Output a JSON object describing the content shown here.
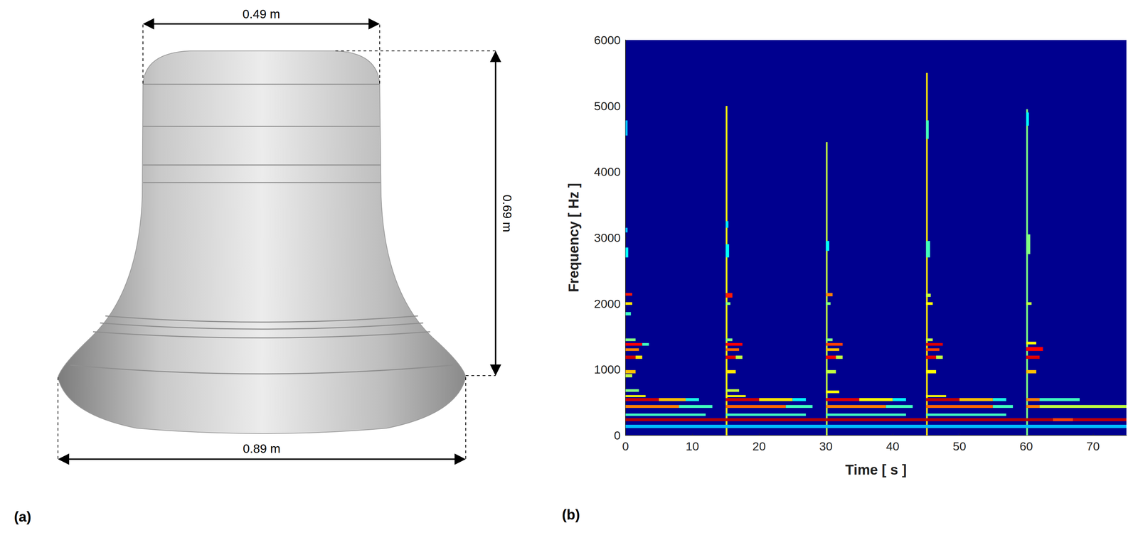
{
  "figure": {
    "a": {
      "label": "(a)",
      "top_width": "0.49 m",
      "height": "0.69 m",
      "base_width": "0.89 m"
    },
    "b": {
      "label": "(b)"
    }
  },
  "chart_data": {
    "type": "heatmap",
    "x_label": "Time [ s ]",
    "y_label": "Frequency [ Hz ]",
    "xlim": [
      0,
      75
    ],
    "xticks": [
      0,
      10,
      20,
      30,
      40,
      50,
      60,
      70
    ],
    "ylim": [
      0,
      6000
    ],
    "yticks": [
      0,
      1000,
      2000,
      3000,
      4000,
      5000,
      6000
    ],
    "grid": false,
    "color_range": [
      0,
      1
    ],
    "cells": [
      [
        0,
        15,
        110,
        160,
        0.35
      ],
      [
        0,
        15,
        215,
        260,
        0.92
      ],
      [
        0,
        12,
        295,
        330,
        0.45
      ],
      [
        0,
        8,
        415,
        460,
        0.7
      ],
      [
        8,
        13,
        415,
        460,
        0.45
      ],
      [
        0,
        5,
        520,
        565,
        0.88
      ],
      [
        5,
        9,
        520,
        565,
        0.65
      ],
      [
        9,
        11,
        520,
        565,
        0.42
      ],
      [
        0,
        3,
        580,
        610,
        0.6
      ],
      [
        0,
        2,
        660,
        700,
        0.5
      ],
      [
        0,
        1,
        880,
        930,
        0.55
      ],
      [
        0,
        1.5,
        940,
        990,
        0.65
      ],
      [
        0,
        1.5,
        1160,
        1210,
        0.88
      ],
      [
        1.5,
        2.5,
        1160,
        1210,
        0.62
      ],
      [
        0,
        2,
        1280,
        1320,
        0.7
      ],
      [
        0,
        2.5,
        1360,
        1400,
        0.8
      ],
      [
        2.5,
        3.5,
        1360,
        1400,
        0.45
      ],
      [
        0,
        1.5,
        1430,
        1470,
        0.5
      ],
      [
        0,
        0.8,
        1820,
        1870,
        0.45
      ],
      [
        0,
        1,
        1980,
        2020,
        0.62
      ],
      [
        0,
        1,
        2120,
        2160,
        0.78
      ],
      [
        0,
        0.4,
        2700,
        2850,
        0.4
      ],
      [
        0,
        0.3,
        3080,
        3150,
        0.35
      ],
      [
        0,
        0.3,
        4550,
        4780,
        0.35
      ],
      [
        15,
        15.25,
        0,
        5000,
        0.6
      ],
      [
        15,
        30,
        110,
        160,
        0.35
      ],
      [
        15,
        30,
        215,
        260,
        0.92
      ],
      [
        15,
        27,
        295,
        330,
        0.45
      ],
      [
        15,
        24,
        415,
        460,
        0.72
      ],
      [
        24,
        28,
        415,
        460,
        0.45
      ],
      [
        15,
        20,
        520,
        565,
        0.88
      ],
      [
        20,
        25,
        520,
        565,
        0.62
      ],
      [
        25,
        27,
        520,
        565,
        0.4
      ],
      [
        15,
        18,
        580,
        610,
        0.6
      ],
      [
        15,
        17,
        660,
        700,
        0.55
      ],
      [
        15,
        16.5,
        940,
        990,
        0.62
      ],
      [
        15,
        16.5,
        1160,
        1210,
        0.85
      ],
      [
        16.5,
        17.5,
        1160,
        1210,
        0.55
      ],
      [
        15,
        17,
        1280,
        1320,
        0.72
      ],
      [
        15,
        17.5,
        1360,
        1400,
        0.8
      ],
      [
        15,
        16,
        1430,
        1470,
        0.5
      ],
      [
        15,
        16,
        2090,
        2160,
        0.78
      ],
      [
        15,
        15.7,
        1980,
        2020,
        0.5
      ],
      [
        15,
        15.5,
        2700,
        2900,
        0.4
      ],
      [
        15,
        15.4,
        3150,
        3250,
        0.38
      ],
      [
        30,
        30.25,
        0,
        4450,
        0.55
      ],
      [
        30,
        45,
        110,
        160,
        0.35
      ],
      [
        30,
        45,
        215,
        260,
        0.92
      ],
      [
        30,
        42,
        295,
        330,
        0.45
      ],
      [
        30,
        39,
        415,
        460,
        0.7
      ],
      [
        39,
        43,
        415,
        460,
        0.45
      ],
      [
        30,
        35,
        520,
        565,
        0.85
      ],
      [
        35,
        40,
        520,
        565,
        0.6
      ],
      [
        40,
        42,
        520,
        565,
        0.4
      ],
      [
        30,
        32,
        640,
        680,
        0.6
      ],
      [
        30,
        31.5,
        940,
        990,
        0.55
      ],
      [
        30,
        31.5,
        1160,
        1210,
        0.82
      ],
      [
        31.5,
        32.5,
        1160,
        1210,
        0.55
      ],
      [
        30,
        32,
        1280,
        1320,
        0.65
      ],
      [
        30,
        32.5,
        1360,
        1400,
        0.75
      ],
      [
        30,
        31,
        1430,
        1470,
        0.5
      ],
      [
        30,
        31,
        2110,
        2160,
        0.7
      ],
      [
        30,
        30.7,
        1980,
        2020,
        0.5
      ],
      [
        30,
        30.5,
        2800,
        2950,
        0.4
      ],
      [
        45,
        45.25,
        0,
        5500,
        0.62
      ],
      [
        45,
        60,
        110,
        160,
        0.35
      ],
      [
        45,
        60,
        215,
        260,
        0.92
      ],
      [
        45,
        57,
        295,
        330,
        0.45
      ],
      [
        45,
        55,
        415,
        460,
        0.72
      ],
      [
        55,
        58,
        415,
        460,
        0.45
      ],
      [
        45,
        50,
        520,
        565,
        0.9
      ],
      [
        50,
        55,
        520,
        565,
        0.65
      ],
      [
        55,
        57,
        520,
        565,
        0.42
      ],
      [
        45,
        48,
        580,
        610,
        0.6
      ],
      [
        45,
        46.5,
        940,
        990,
        0.6
      ],
      [
        45,
        46.5,
        1160,
        1210,
        0.85
      ],
      [
        46.5,
        47.5,
        1160,
        1210,
        0.55
      ],
      [
        45,
        47,
        1280,
        1320,
        0.75
      ],
      [
        45,
        47.5,
        1360,
        1400,
        0.85
      ],
      [
        45,
        46,
        1430,
        1470,
        0.55
      ],
      [
        45,
        46,
        1980,
        2020,
        0.6
      ],
      [
        45,
        45.7,
        2100,
        2150,
        0.55
      ],
      [
        45,
        45.6,
        2700,
        2950,
        0.45
      ],
      [
        45,
        45.4,
        4500,
        4780,
        0.45
      ],
      [
        60,
        60.25,
        0,
        4950,
        0.5
      ],
      [
        60,
        75,
        110,
        160,
        0.35
      ],
      [
        60,
        64,
        215,
        260,
        0.92
      ],
      [
        64,
        67,
        215,
        260,
        0.75
      ],
      [
        67,
        75,
        215,
        260,
        0.9
      ],
      [
        60,
        62,
        415,
        460,
        0.7
      ],
      [
        62,
        75,
        415,
        460,
        0.55
      ],
      [
        60,
        62,
        520,
        565,
        0.7
      ],
      [
        62,
        68,
        520,
        565,
        0.45
      ],
      [
        60,
        61.5,
        940,
        990,
        0.65
      ],
      [
        60,
        62,
        1160,
        1210,
        0.85
      ],
      [
        60,
        62.5,
        1280,
        1340,
        0.8
      ],
      [
        60,
        61.5,
        1380,
        1420,
        0.6
      ],
      [
        60,
        60.8,
        1980,
        2020,
        0.55
      ],
      [
        60,
        60.6,
        2750,
        3050,
        0.5
      ],
      [
        60,
        60.4,
        4700,
        4900,
        0.4
      ]
    ]
  }
}
